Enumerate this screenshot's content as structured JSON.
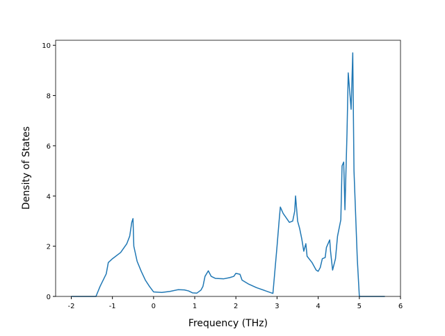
{
  "chart_data": {
    "type": "line",
    "xlabel": "Frequency (THz)",
    "ylabel": "Density of States",
    "xlim": [
      -2.38,
      6.0
    ],
    "ylim": [
      0,
      10.2
    ],
    "xticks": [
      -2,
      -1,
      0,
      1,
      2,
      3,
      4,
      5,
      6
    ],
    "yticks": [
      0,
      2,
      4,
      6,
      8,
      10
    ],
    "series": [
      {
        "color": "#1f77b4",
        "x": [
          -2.0,
          -1.4,
          -1.3,
          -1.15,
          -1.1,
          -1.0,
          -0.8,
          -0.65,
          -0.58,
          -0.53,
          -0.5,
          -0.48,
          -0.4,
          -0.3,
          -0.2,
          -0.1,
          0.0,
          0.2,
          0.4,
          0.6,
          0.75,
          0.85,
          0.95,
          1.05,
          1.15,
          1.2,
          1.25,
          1.33,
          1.4,
          1.5,
          1.7,
          1.85,
          1.95,
          2.0,
          2.1,
          2.15,
          2.3,
          2.5,
          2.9,
          3.0,
          3.05,
          3.08,
          3.15,
          3.3,
          3.38,
          3.43,
          3.45,
          3.5,
          3.55,
          3.6,
          3.65,
          3.7,
          3.73,
          3.85,
          3.95,
          4.0,
          4.05,
          4.1,
          4.17,
          4.2,
          4.28,
          4.3,
          4.35,
          4.42,
          4.47,
          4.55,
          4.58,
          4.62,
          4.65,
          4.7,
          4.73,
          4.8,
          4.84,
          4.87,
          4.95,
          5.0,
          5.62
        ],
        "values": [
          0,
          0,
          0.4,
          0.9,
          1.35,
          1.5,
          1.75,
          2.1,
          2.4,
          2.95,
          3.1,
          2.0,
          1.4,
          1.0,
          0.65,
          0.4,
          0.18,
          0.16,
          0.2,
          0.27,
          0.26,
          0.22,
          0.14,
          0.13,
          0.25,
          0.4,
          0.8,
          1.02,
          0.8,
          0.72,
          0.7,
          0.75,
          0.8,
          0.92,
          0.88,
          0.65,
          0.5,
          0.35,
          0.12,
          2.0,
          3.0,
          3.56,
          3.3,
          2.95,
          3.0,
          3.4,
          4.0,
          3.0,
          2.7,
          2.3,
          1.8,
          2.1,
          1.6,
          1.35,
          1.05,
          1.0,
          1.15,
          1.5,
          1.55,
          1.95,
          2.25,
          1.8,
          1.05,
          1.5,
          2.4,
          3.05,
          5.2,
          5.35,
          3.45,
          6.5,
          8.9,
          7.45,
          9.7,
          5.0,
          1.5,
          0,
          0
        ]
      }
    ]
  }
}
